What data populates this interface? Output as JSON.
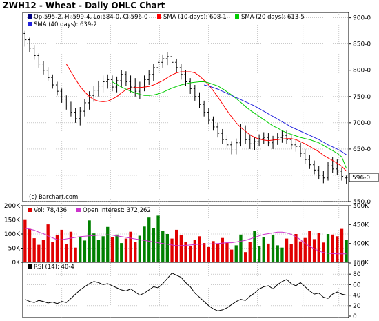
{
  "title": "ZWH12 - Wheat - Daily OHLC Chart",
  "watermark": "(c) Barchart.com",
  "price_legend": {
    "ohlc": "Op:595-2, Hi:599-4, Lo:584-0, Cl:596-0",
    "sma10": "SMA (10 days): 608-1",
    "sma20": "SMA (20 days): 613-5",
    "sma40": "SMA (40 days): 639-2"
  },
  "last_price_label": "596-0",
  "volume_legend": {
    "vol": "Vol: 78,436",
    "oi": "Open Interest: 372,262"
  },
  "rsi_legend": "RSI (14): 40-4",
  "colors": {
    "up": "#008000",
    "down": "#e00000",
    "sma10": "#ff0000",
    "sma20": "#00cc00",
    "sma40": "#2222dd",
    "oi": "#cc33cc",
    "ohlc_square": "#000080"
  },
  "chart_data": [
    {
      "type": "ohlc",
      "series": [
        {
          "name": "Daily OHLC",
          "values": [
            [
              870,
              875,
              845,
              858
            ],
            [
              858,
              862,
              835,
              842
            ],
            [
              842,
              848,
              820,
              828
            ],
            [
              828,
              832,
              805,
              812
            ],
            [
              812,
              818,
              792,
              800
            ],
            [
              800,
              806,
              780,
              786
            ],
            [
              786,
              792,
              765,
              772
            ],
            [
              772,
              778,
              752,
              760
            ],
            [
              760,
              765,
              738,
              745
            ],
            [
              745,
              752,
              725,
              732
            ],
            [
              732,
              740,
              712,
              720
            ],
            [
              720,
              728,
              700,
              708
            ],
            [
              708,
              730,
              695,
              722
            ],
            [
              722,
              745,
              712,
              738
            ],
            [
              738,
              760,
              725,
              752
            ],
            [
              752,
              770,
              740,
              762
            ],
            [
              762,
              780,
              750,
              770
            ],
            [
              770,
              790,
              758,
              778
            ],
            [
              778,
              792,
              765,
              782
            ],
            [
              782,
              790,
              760,
              768
            ],
            [
              768,
              788,
              758,
              780
            ],
            [
              780,
              800,
              768,
              792
            ],
            [
              792,
              798,
              770,
              778
            ],
            [
              778,
              790,
              758,
              768
            ],
            [
              768,
              785,
              750,
              760
            ],
            [
              760,
              778,
              745,
              770
            ],
            [
              770,
              790,
              760,
              782
            ],
            [
              782,
              800,
              772,
              792
            ],
            [
              792,
              812,
              780,
              805
            ],
            [
              805,
              822,
              795,
              815
            ],
            [
              815,
              830,
              805,
              822
            ],
            [
              822,
              835,
              810,
              826
            ],
            [
              826,
              832,
              808,
              815
            ],
            [
              815,
              822,
              795,
              805
            ],
            [
              805,
              812,
              782,
              792
            ],
            [
              792,
              800,
              770,
              778
            ],
            [
              778,
              785,
              755,
              765
            ],
            [
              765,
              772,
              742,
              750
            ],
            [
              750,
              758,
              728,
              735
            ],
            [
              735,
              742,
              712,
              720
            ],
            [
              720,
              728,
              698,
              705
            ],
            [
              705,
              712,
              685,
              692
            ],
            [
              692,
              700,
              672,
              680
            ],
            [
              680,
              688,
              660,
              668
            ],
            [
              668,
              676,
              650,
              658
            ],
            [
              658,
              665,
              640,
              648
            ],
            [
              648,
              670,
              640,
              662
            ],
            [
              662,
              698,
              655,
              690
            ],
            [
              690,
              695,
              660,
              668
            ],
            [
              668,
              678,
              650,
              660
            ],
            [
              660,
              672,
              648,
              664
            ],
            [
              664,
              678,
              655,
              670
            ],
            [
              670,
              682,
              660,
              672
            ],
            [
              672,
              680,
              655,
              662
            ],
            [
              662,
              675,
              650,
              668
            ],
            [
              668,
              680,
              658,
              672
            ],
            [
              672,
              685,
              662,
              676
            ],
            [
              676,
              685,
              660,
              668
            ],
            [
              668,
              676,
              650,
              658
            ],
            [
              658,
              668,
              645,
              655
            ],
            [
              655,
              662,
              635,
              642
            ],
            [
              642,
              650,
              622,
              630
            ],
            [
              630,
              638,
              612,
              620
            ],
            [
              620,
              628,
              602,
              610
            ],
            [
              610,
              618,
              592,
              600
            ],
            [
              600,
              608,
              585,
              595
            ],
            [
              595,
              625,
              590,
              618
            ],
            [
              618,
              635,
              605,
              612
            ],
            [
              612,
              630,
              600,
              608
            ],
            [
              608,
              615,
              590,
              598
            ],
            [
              595,
              599.5,
              584,
              596
            ]
          ]
        },
        {
          "name": "SMA (10 days)",
          "values": [
            null,
            null,
            null,
            null,
            null,
            null,
            null,
            null,
            null,
            812,
            797,
            783,
            769,
            759,
            750,
            744,
            741,
            740,
            741,
            745,
            750,
            757,
            763,
            766,
            767,
            767,
            768,
            769,
            772,
            776,
            780,
            786,
            791,
            795,
            797,
            797,
            797,
            795,
            789,
            781,
            772,
            761,
            749,
            736,
            723,
            711,
            700,
            691,
            684,
            677,
            672,
            669,
            667,
            666,
            667,
            668,
            669,
            670,
            670,
            668,
            664,
            660,
            655,
            650,
            645,
            638,
            633,
            628,
            623,
            617,
            608
          ]
        },
        {
          "name": "SMA (20 days)",
          "values": [
            null,
            null,
            null,
            null,
            null,
            null,
            null,
            null,
            null,
            null,
            null,
            null,
            null,
            null,
            null,
            null,
            null,
            null,
            null,
            778,
            773,
            768,
            764,
            760,
            757,
            754,
            752,
            752,
            753,
            755,
            758,
            762,
            766,
            769,
            772,
            774,
            776,
            777,
            778,
            778,
            776,
            773,
            770,
            765,
            759,
            753,
            746,
            739,
            731,
            724,
            718,
            712,
            706,
            700,
            694,
            690,
            685,
            681,
            678,
            675,
            672,
            670,
            668,
            665,
            662,
            657,
            652,
            647,
            642,
            635,
            613
          ]
        },
        {
          "name": "SMA (40 days)",
          "values": [
            null,
            null,
            null,
            null,
            null,
            null,
            null,
            null,
            null,
            null,
            null,
            null,
            null,
            null,
            null,
            null,
            null,
            null,
            null,
            null,
            null,
            null,
            null,
            null,
            null,
            null,
            null,
            null,
            null,
            null,
            null,
            null,
            null,
            null,
            null,
            null,
            null,
            null,
            null,
            772,
            770,
            767,
            764,
            760,
            756,
            752,
            748,
            744,
            740,
            736,
            732,
            727,
            722,
            717,
            712,
            707,
            702,
            697,
            692,
            688,
            684,
            680,
            676,
            672,
            668,
            663,
            658,
            654,
            650,
            645,
            639
          ]
        }
      ],
      "ylim": [
        550,
        910
      ],
      "y_ticks": [
        550,
        600,
        650,
        700,
        750,
        800,
        850,
        900
      ],
      "y_tick_labels": [
        "550-0",
        "600-0",
        "650-0",
        "700-0",
        "750-0",
        "800-0",
        "850-0",
        "900-0"
      ],
      "grid": true,
      "legend": "top-left"
    },
    {
      "type": "bar",
      "series": [
        {
          "name": "Vol",
          "values": [
            152000,
            118000,
            85000,
            62000,
            78000,
            134000,
            72000,
            96000,
            115000,
            64000,
            108000,
            52000,
            90000,
            77000,
            148000,
            102000,
            80000,
            92000,
            125000,
            88000,
            98000,
            68000,
            84000,
            108000,
            72000,
            94000,
            126000,
            158000,
            120000,
            165000,
            110000,
            100000,
            84000,
            115000,
            96000,
            72000,
            58000,
            80000,
            92000,
            68000,
            54000,
            75000,
            64000,
            86000,
            70000,
            45000,
            60000,
            98000,
            36000,
            72000,
            110000,
            56000,
            90000,
            66000,
            96000,
            60000,
            52000,
            84000,
            64000,
            100000,
            74000,
            86000,
            112000,
            82000,
            104000,
            70000,
            100000,
            98000,
            92000,
            118000,
            78436
          ]
        },
        {
          "name": "Open Interest",
          "values": [
            440000,
            438000,
            435000,
            430000,
            426000,
            420000,
            415000,
            410000,
            410000,
            412000,
            414000,
            416000,
            418000,
            419000,
            420000,
            421000,
            422000,
            422000,
            423000,
            422000,
            420000,
            418000,
            416000,
            414000,
            412000,
            410000,
            408000,
            406000,
            404000,
            402000,
            400000,
            398000,
            396000,
            394000,
            394000,
            395000,
            396000,
            397000,
            398000,
            398000,
            399000,
            399000,
            400000,
            401000,
            402000,
            402000,
            404000,
            406000,
            408000,
            412000,
            416000,
            420000,
            424000,
            426000,
            428000,
            430000,
            430000,
            428000,
            424000,
            418000,
            410000,
            400000,
            392000,
            386000,
            380000,
            376000,
            374000,
            373000,
            372500,
            372300,
            372262
          ]
        }
      ],
      "ylim_vol": [
        0,
        200000
      ],
      "y_ticks_vol": [
        "0K",
        "50K",
        "100K",
        "150K",
        "200K"
      ],
      "ylim_oi": [
        350000,
        500000
      ],
      "y_ticks_oi": [
        "350K",
        "400K",
        "450K",
        "500K"
      ],
      "grid": true
    },
    {
      "type": "line",
      "series": [
        {
          "name": "RSI (14)",
          "values": [
            32,
            28,
            26,
            30,
            28,
            25,
            27,
            24,
            28,
            26,
            34,
            42,
            50,
            56,
            62,
            66,
            64,
            60,
            62,
            58,
            54,
            50,
            48,
            52,
            46,
            40,
            44,
            50,
            56,
            54,
            62,
            72,
            82,
            78,
            74,
            64,
            56,
            44,
            36,
            28,
            20,
            14,
            10,
            12,
            16,
            22,
            28,
            32,
            30,
            38,
            44,
            52,
            56,
            58,
            52,
            60,
            66,
            70,
            62,
            58,
            64,
            56,
            48,
            42,
            44,
            36,
            34,
            42,
            46,
            42,
            40
          ]
        }
      ],
      "ylim": [
        0,
        100
      ],
      "y_ticks": [
        0,
        20,
        40,
        60,
        80,
        100
      ],
      "grid": true
    }
  ]
}
